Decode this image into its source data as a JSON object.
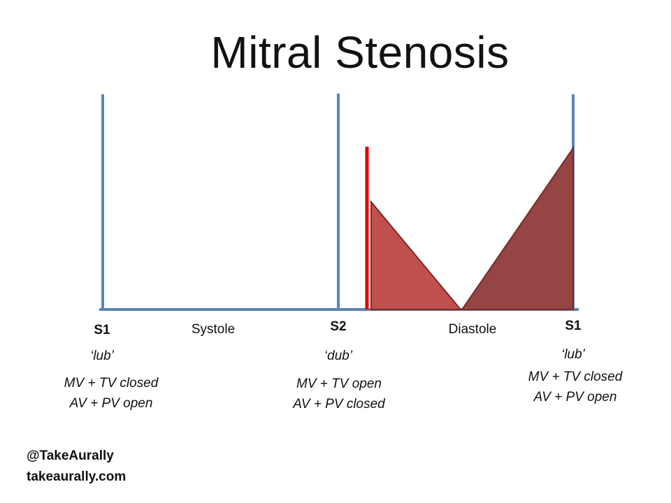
{
  "title": "Mitral Stenosis",
  "colors": {
    "axis": "#5b84b1",
    "murmur_fill": "#c0504d",
    "murmur_fill_dark": "#954543",
    "murmur_outline": "#7b2b29",
    "opening_snap": "#e00000"
  },
  "events": {
    "s1_left": {
      "label": "S1",
      "sound": "‘lub’",
      "valves": [
        "MV + TV closed",
        "AV + PV open"
      ]
    },
    "systole": {
      "label": "Systole"
    },
    "s2": {
      "label": "S2",
      "sound": "‘dub’",
      "valves": [
        "MV + TV open",
        "AV + PV closed"
      ]
    },
    "diastole": {
      "label": "Diastole"
    },
    "s1_right": {
      "label": "S1",
      "sound": "‘lub’",
      "valves": [
        "MV + TV closed",
        "AV + PV open"
      ]
    }
  },
  "footer": {
    "handle": "@TakeAurally",
    "website": "takeaurally.com"
  }
}
